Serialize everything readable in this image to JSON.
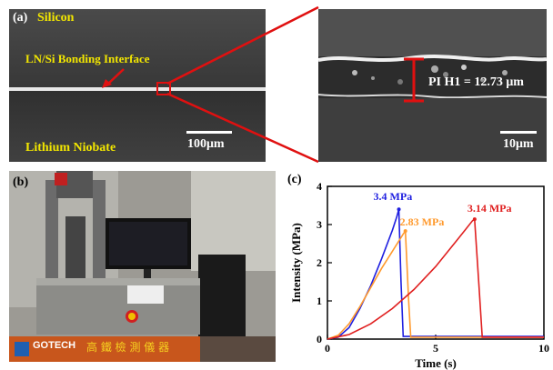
{
  "panel_a": {
    "label": "(a)",
    "top_layer": "Silicon",
    "interface_label": "LN/Si Bonding Interface",
    "bottom_layer": "Lithium Niobate",
    "scale_left": "100μm",
    "scale_right": "10μm",
    "measurement": "PI H1 = 12.73 μm"
  },
  "panel_b": {
    "label": "(b)",
    "machine_brand": "GOTECH",
    "machine_text": "高 鐵 檢 測 儀 器"
  },
  "panel_c": {
    "label": "(c)"
  },
  "chart_data": {
    "type": "line",
    "xlabel": "Time (s)",
    "ylabel": "Intensity (MPa)",
    "xlim": [
      0,
      10
    ],
    "ylim": [
      0,
      4
    ],
    "xticks": [
      "0",
      "5",
      "10"
    ],
    "yticks": [
      "0",
      "1",
      "2",
      "3",
      "4"
    ],
    "series": [
      {
        "name": "3.4 MPa",
        "color": "#1f1fe0",
        "x": [
          0.0,
          0.5,
          1.0,
          1.5,
          2.0,
          2.5,
          3.0,
          3.2,
          3.3,
          3.4,
          3.5,
          10.0
        ],
        "y": [
          0.0,
          0.05,
          0.3,
          0.8,
          1.4,
          2.1,
          2.85,
          3.2,
          3.4,
          1.5,
          0.07,
          0.07
        ]
      },
      {
        "name": "2.83 MPa",
        "color": "#ff9a2e",
        "x": [
          0.0,
          0.5,
          1.0,
          1.5,
          2.0,
          2.5,
          3.0,
          3.5,
          3.6,
          3.75,
          3.85,
          10.0
        ],
        "y": [
          0.0,
          0.1,
          0.4,
          0.85,
          1.35,
          1.85,
          2.3,
          2.75,
          2.83,
          1.0,
          0.05,
          0.05
        ]
      },
      {
        "name": "3.14 MPa",
        "color": "#e02020",
        "x": [
          0.0,
          1.0,
          2.0,
          3.0,
          4.0,
          5.0,
          6.0,
          6.7,
          6.8,
          7.0,
          7.15,
          10.0
        ],
        "y": [
          0.0,
          0.12,
          0.4,
          0.8,
          1.3,
          1.9,
          2.6,
          3.1,
          3.14,
          1.4,
          0.05,
          0.05
        ]
      }
    ]
  }
}
